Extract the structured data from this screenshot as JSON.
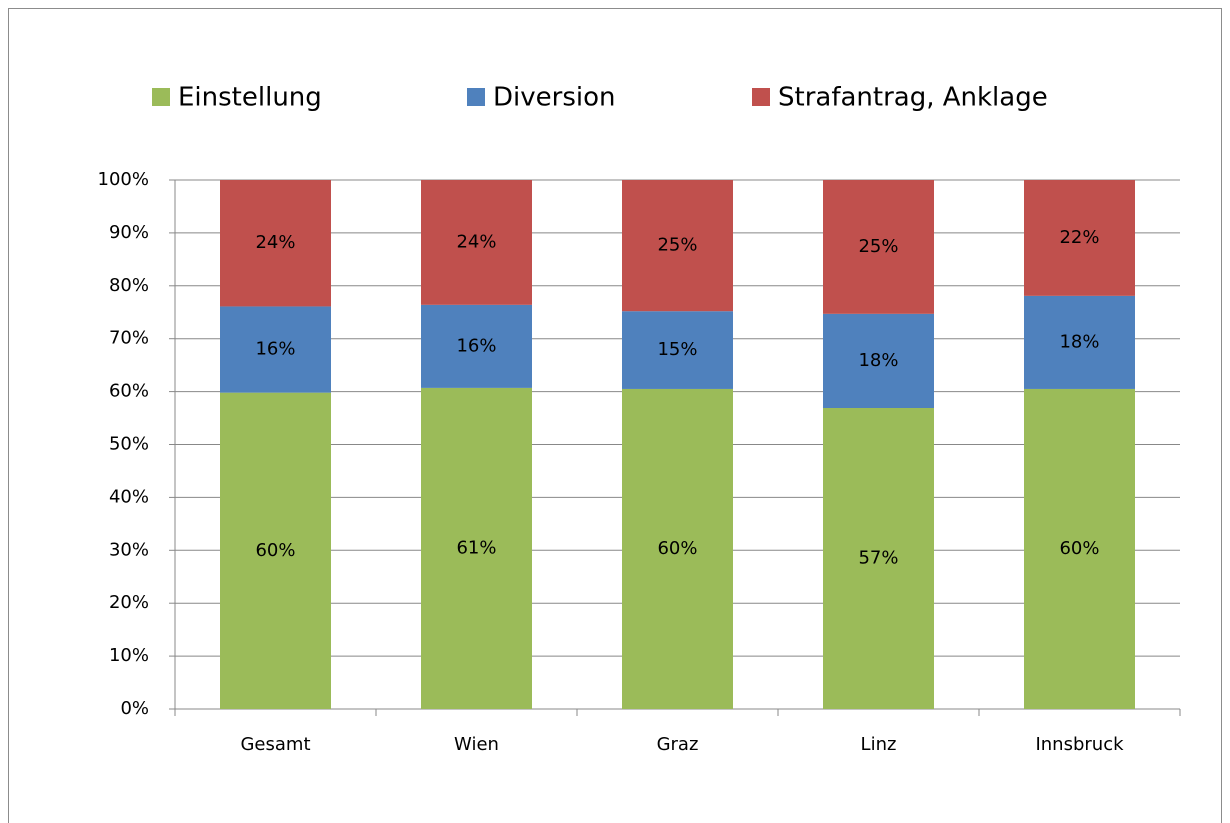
{
  "chart_data": {
    "type": "bar",
    "stacked": true,
    "categories": [
      "Gesamt",
      "Wien",
      "Graz",
      "Linz",
      "Innsbruck"
    ],
    "series": [
      {
        "name": "Einstellung",
        "color": "#9bbb59",
        "values": [
          59.8,
          60.7,
          60.5,
          56.9,
          60.5
        ],
        "value_labels": [
          "60%",
          "61%",
          "60%",
          "57%",
          "60%"
        ]
      },
      {
        "name": "Diversion",
        "color": "#4f81bd",
        "values": [
          16.3,
          15.7,
          14.7,
          17.8,
          17.6
        ],
        "value_labels": [
          "16%",
          "16%",
          "15%",
          "18%",
          "18%"
        ]
      },
      {
        "name": "Strafantrag, Anklage",
        "color": "#c0504d",
        "values": [
          23.9,
          23.6,
          24.8,
          25.3,
          21.9
        ],
        "value_labels": [
          "24%",
          "24%",
          "25%",
          "25%",
          "22%"
        ]
      }
    ],
    "ylim": [
      0,
      100
    ],
    "yticks": [
      {
        "value": 0,
        "label": "0%"
      },
      {
        "value": 10,
        "label": "10%"
      },
      {
        "value": 20,
        "label": "20%"
      },
      {
        "value": 30,
        "label": "30%"
      },
      {
        "value": 40,
        "label": "40%"
      },
      {
        "value": 50,
        "label": "50%"
      },
      {
        "value": 60,
        "label": "60%"
      },
      {
        "value": 70,
        "label": "70%"
      },
      {
        "value": 80,
        "label": "80%"
      },
      {
        "value": 90,
        "label": "90%"
      },
      {
        "value": 100,
        "label": "100%"
      }
    ],
    "grid": true,
    "legend": "top"
  }
}
